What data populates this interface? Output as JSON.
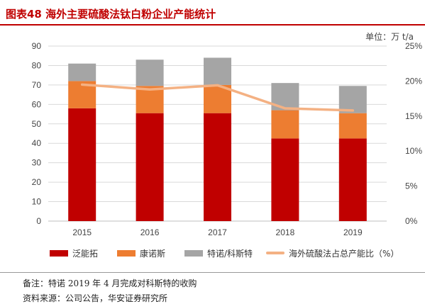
{
  "header": {
    "title": "图表48    海外主要硫酸法钛白粉企业产能统计",
    "unit": "单位：万 t/a"
  },
  "footer": {
    "note": "备注：特诺 2019 年 4 月完成对科斯特的收购",
    "source": "资料来源：公司公告，华安证券研究所"
  },
  "colors": {
    "fandoto": "#c00000",
    "kangnuosi": "#ed7d31",
    "tenuo": "#a5a5a5",
    "share_line": "#f4b183",
    "title_red": "#c00000"
  },
  "chart_data": {
    "type": "bar",
    "stacked": true,
    "categories": [
      "2015",
      "2016",
      "2017",
      "2018",
      "2019"
    ],
    "series": [
      {
        "name": "泛能拓",
        "values": [
          58,
          55.5,
          55.5,
          42.5,
          42.5
        ]
      },
      {
        "name": "康诺斯",
        "values": [
          14,
          14,
          14.5,
          14.5,
          13
        ]
      },
      {
        "name": "特诺/科斯特",
        "values": [
          9,
          13.5,
          14,
          14,
          14
        ]
      }
    ],
    "line_series": {
      "name": "海外硫酸法占总产能比（%）",
      "axis": "right",
      "values": [
        19.5,
        18.8,
        19.4,
        16.1,
        15.8
      ]
    },
    "ylim": [
      0,
      90
    ],
    "yticks": [
      "0",
      "10",
      "20",
      "30",
      "40",
      "50",
      "60",
      "70",
      "80",
      "90"
    ],
    "y2lim": [
      0,
      25
    ],
    "y2ticks": [
      "0%",
      "5%",
      "10%",
      "15%",
      "20%",
      "25%"
    ],
    "legend_position": "bottom"
  }
}
